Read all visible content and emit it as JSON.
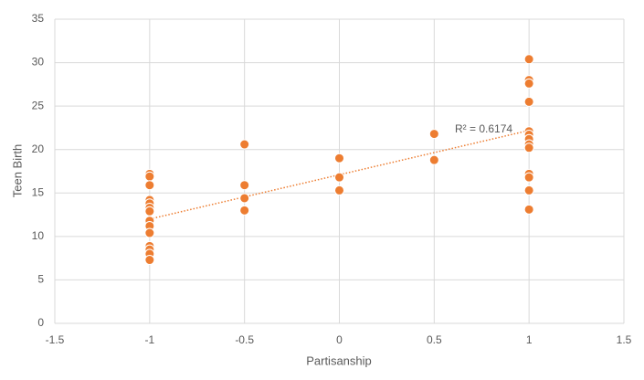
{
  "chart_data": {
    "type": "scatter",
    "x_label": "Partisanship",
    "y_label": "Teen Birth",
    "x": [
      -1,
      -1,
      -1,
      -1,
      -1,
      -1,
      -1,
      -1,
      -1,
      -1,
      -1,
      -1,
      -1,
      -1,
      -0.5,
      -0.5,
      -0.5,
      -0.5,
      0,
      0,
      0,
      0.5,
      0.5,
      1,
      1,
      1,
      1,
      1,
      1,
      1,
      1,
      1,
      1,
      1,
      1,
      1
    ],
    "values": [
      17.2,
      16.9,
      15.9,
      14.2,
      13.8,
      13.3,
      12.9,
      11.8,
      11.2,
      10.4,
      8.9,
      8.5,
      8.0,
      7.3,
      20.6,
      15.9,
      14.4,
      13.0,
      19.0,
      16.8,
      15.3,
      21.8,
      18.8,
      30.4,
      28.0,
      27.6,
      25.5,
      22.1,
      21.7,
      21.2,
      20.6,
      20.2,
      17.2,
      16.8,
      15.3,
      13.1
    ],
    "color": "#ED7D31",
    "trendline": {
      "x": [
        -1,
        1
      ],
      "values": [
        12.0,
        22.2
      ],
      "label": "R² = 0.6174"
    },
    "xlim": [
      -1.5,
      1.5
    ],
    "xticks": [
      -1.5,
      -1,
      -0.5,
      0,
      0.5,
      1,
      1.5
    ],
    "ylim": [
      0,
      35
    ],
    "yticks": [
      0,
      5,
      10,
      15,
      20,
      25,
      30,
      35
    ],
    "grid": true
  }
}
